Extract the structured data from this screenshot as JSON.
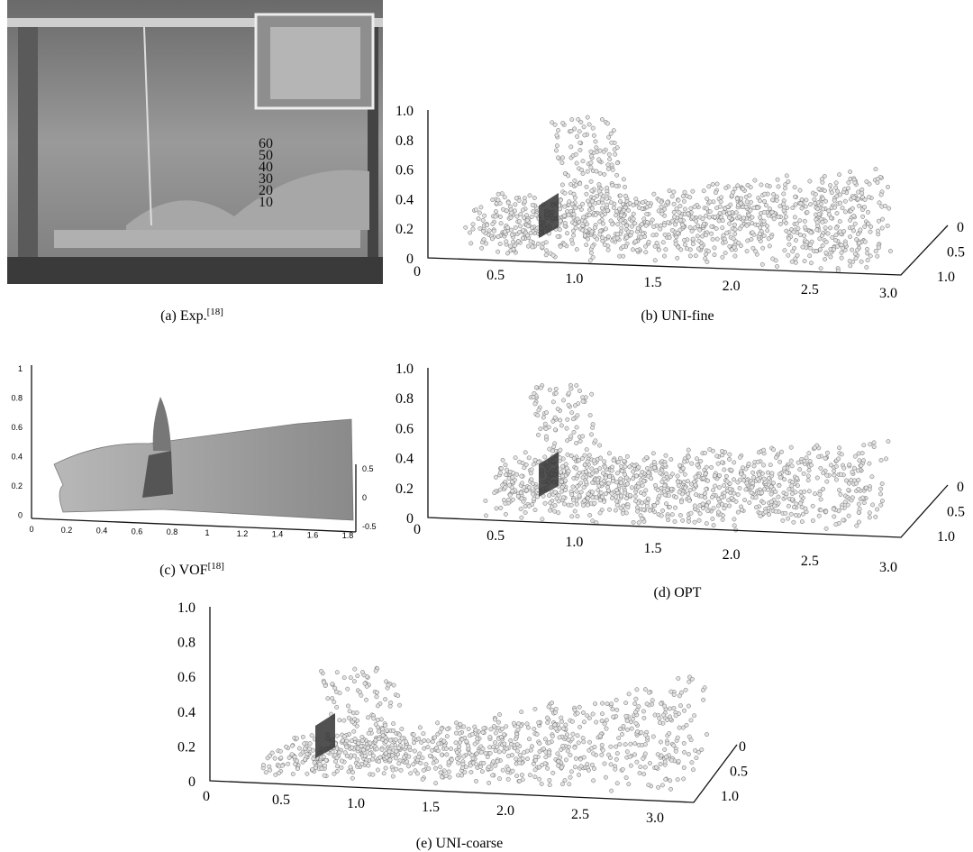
{
  "panels": [
    {
      "caption": "(a) Exp.",
      "ref": "[18]",
      "ruler_labels": [
        "60",
        "50",
        "40",
        "30",
        "20",
        "10"
      ]
    },
    {
      "caption": "(b) UNI-fine",
      "yticks": [
        "1.0",
        "0.8",
        "0.6",
        "0.4",
        "0.2",
        "0"
      ],
      "xticks": [
        "0",
        "0.5",
        "1.0",
        "1.5",
        "2.0",
        "2.5",
        "3.0"
      ],
      "zticks": [
        "0",
        "0.5",
        "1.0"
      ]
    },
    {
      "caption": "(c) VOF",
      "ref": "[18]",
      "yticks": [
        "1",
        "0.8",
        "0.6",
        "0.4",
        "0.2",
        "0"
      ],
      "xticks": [
        "0",
        "0.2",
        "0.4",
        "0.6",
        "0.8",
        "1",
        "1.2",
        "1.4",
        "1.6",
        "1.8"
      ],
      "zticks": [
        "0.5",
        "0",
        "-0.5"
      ]
    },
    {
      "caption": "(d) OPT",
      "yticks": [
        "1.0",
        "0.8",
        "0.6",
        "0.4",
        "0.2",
        "0"
      ],
      "xticks": [
        "0",
        "0.5",
        "1.0",
        "1.5",
        "2.0",
        "2.5",
        "3.0"
      ],
      "zticks": [
        "0",
        "0.5",
        "1.0"
      ]
    },
    {
      "caption": "(e) UNI-coarse",
      "yticks": [
        "1.0",
        "0.8",
        "0.6",
        "0.4",
        "0.2",
        "0"
      ],
      "xticks": [
        "0",
        "0.5",
        "1.0",
        "1.5",
        "2.0",
        "2.5",
        "3.0"
      ],
      "zticks": [
        "0",
        "0.5",
        "1.0"
      ]
    }
  ]
}
